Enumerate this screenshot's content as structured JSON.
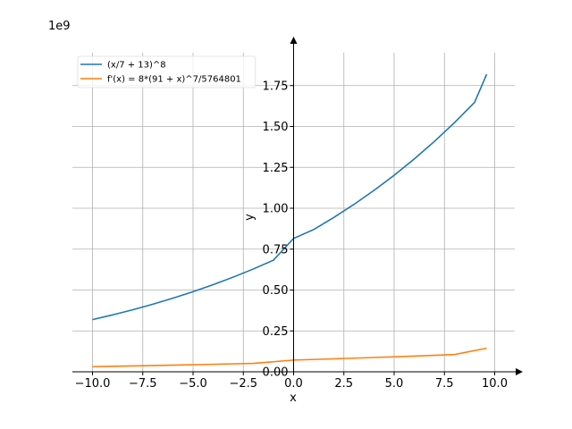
{
  "chart_data": {
    "type": "line",
    "title": "",
    "xlabel": "x",
    "ylabel": "y",
    "offset_text": "1e9",
    "xlim": [
      -11,
      11
    ],
    "ylim": [
      0,
      2.0
    ],
    "y_scale_note": "values in units of 1e9",
    "grid": true,
    "legend_position": "top-left",
    "x_ticks": [
      -10,
      -7.5,
      -5,
      -2.5,
      0,
      2.5,
      5,
      7.5,
      10
    ],
    "x_tick_labels": [
      "−10.0",
      "−7.5",
      "−5.0",
      "−2.5",
      "0.0",
      "2.5",
      "5.0",
      "7.5",
      "10.0"
    ],
    "y_ticks": [
      0,
      0.25,
      0.5,
      0.75,
      1.0,
      1.25,
      1.5,
      1.75
    ],
    "y_tick_labels": [
      "0.00",
      "0.25",
      "0.50",
      "0.75",
      "1.00",
      "1.25",
      "1.50",
      "1.75"
    ],
    "series": [
      {
        "name": "(x/7 + 13)^8",
        "color": "#1f77b4",
        "x": [
          -10,
          -9,
          -8,
          -7,
          -6,
          -5,
          -4,
          -3,
          -2,
          -1,
          0,
          1,
          2,
          3,
          4,
          5,
          6,
          7,
          8,
          9,
          9.6
        ],
        "y": [
          0.3189,
          0.3479,
          0.3793,
          0.4133,
          0.45,
          0.4897,
          0.5326,
          0.5789,
          0.6288,
          0.6826,
          0.8157,
          0.8698,
          0.9437,
          1.0234,
          1.1092,
          1.2017,
          1.3012,
          1.408,
          1.5233,
          1.6475,
          1.8188
        ]
      },
      {
        "name": "f'(x) = 8*(91 + x)^7/5764801",
        "color": "#ff7f0e",
        "x": [
          -10,
          -8,
          -6,
          -4,
          -2,
          0,
          2,
          4,
          6,
          8,
          9.6
        ],
        "y": [
          0.0315,
          0.0358,
          0.0406,
          0.0458,
          0.0516,
          0.0717,
          0.0793,
          0.0874,
          0.0962,
          0.1057,
          0.144
        ]
      }
    ]
  }
}
